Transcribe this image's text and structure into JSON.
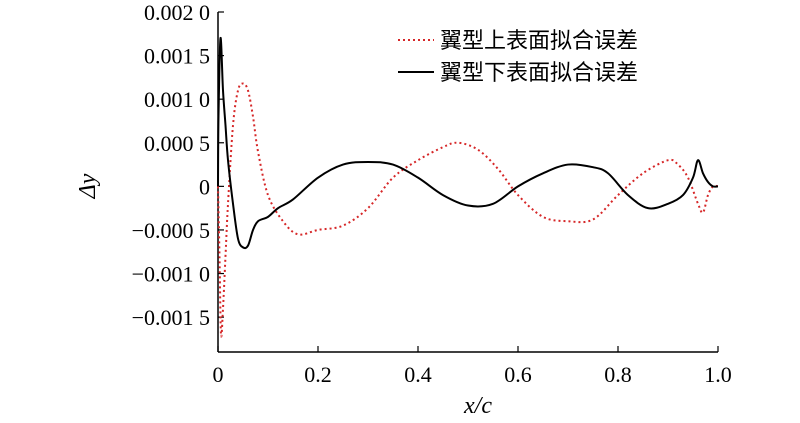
{
  "chart_data": {
    "type": "line",
    "title": "",
    "xlabel": "x/c",
    "ylabel": "Δy",
    "xlim": [
      0,
      1.0
    ],
    "ylim": [
      -0.0019,
      0.002
    ],
    "x_ticks": [
      0,
      0.2,
      0.4,
      0.6,
      0.8,
      1.0
    ],
    "x_tick_labels": [
      "0",
      "0.2",
      "0.4",
      "0.6",
      "0.8",
      "1.0"
    ],
    "y_ticks": [
      0.002,
      0.0015,
      0.001,
      0.0005,
      0,
      -0.0005,
      -0.001,
      -0.0015
    ],
    "y_tick_labels": [
      "0.002 0",
      "0.001 5",
      "0.001 0",
      "0.000 5",
      "0",
      "−0.000 5",
      "−0.001 0",
      "−0.001 5"
    ],
    "grid": false,
    "legend_position": "top-right",
    "series": [
      {
        "name": "翼型上表面拟合误差",
        "color": "#d62728",
        "style": "dotted",
        "x": [
          0,
          0.003,
          0.006,
          0.01,
          0.015,
          0.02,
          0.03,
          0.04,
          0.05,
          0.06,
          0.07,
          0.08,
          0.1,
          0.13,
          0.16,
          0.2,
          0.25,
          0.3,
          0.35,
          0.4,
          0.45,
          0.48,
          0.52,
          0.56,
          0.6,
          0.65,
          0.7,
          0.75,
          0.8,
          0.85,
          0.9,
          0.92,
          0.94,
          0.96,
          0.97,
          0.98,
          0.99,
          1.0
        ],
        "y": [
          0,
          -0.0008,
          -0.0017,
          -0.0014,
          -0.0008,
          -0.0002,
          0.0007,
          0.0011,
          0.00118,
          0.0011,
          0.0008,
          0.0004,
          -0.0001,
          -0.0004,
          -0.00055,
          -0.0005,
          -0.00045,
          -0.00025,
          0.0001,
          0.0003,
          0.00045,
          0.0005,
          0.00042,
          0.0002,
          -0.0001,
          -0.00035,
          -0.0004,
          -0.00038,
          -0.0001,
          0.00015,
          0.0003,
          0.00025,
          0.0001,
          -0.0002,
          -0.0003,
          -0.0001,
          0,
          0
        ]
      },
      {
        "name": "翼型下表面拟合误差",
        "color": "#000000",
        "style": "solid",
        "x": [
          0,
          0.001,
          0.005,
          0.01,
          0.015,
          0.02,
          0.03,
          0.04,
          0.05,
          0.06,
          0.07,
          0.08,
          0.1,
          0.12,
          0.15,
          0.2,
          0.25,
          0.3,
          0.35,
          0.4,
          0.45,
          0.5,
          0.55,
          0.6,
          0.65,
          0.7,
          0.75,
          0.78,
          0.82,
          0.86,
          0.9,
          0.93,
          0.95,
          0.96,
          0.97,
          0.98,
          0.99,
          1.0
        ],
        "y": [
          0,
          0.0008,
          0.0017,
          0.0011,
          0.0007,
          0.0003,
          -0.0002,
          -0.0006,
          -0.0007,
          -0.00068,
          -0.0005,
          -0.0004,
          -0.00035,
          -0.00025,
          -0.00015,
          0.0001,
          0.00025,
          0.00028,
          0.00025,
          0.0001,
          -0.0001,
          -0.00022,
          -0.0002,
          0,
          0.00015,
          0.00025,
          0.00022,
          0.00015,
          -0.0001,
          -0.00025,
          -0.0002,
          -0.0001,
          0.0001,
          0.0003,
          0.00015,
          5e-05,
          0,
          0
        ]
      }
    ]
  }
}
